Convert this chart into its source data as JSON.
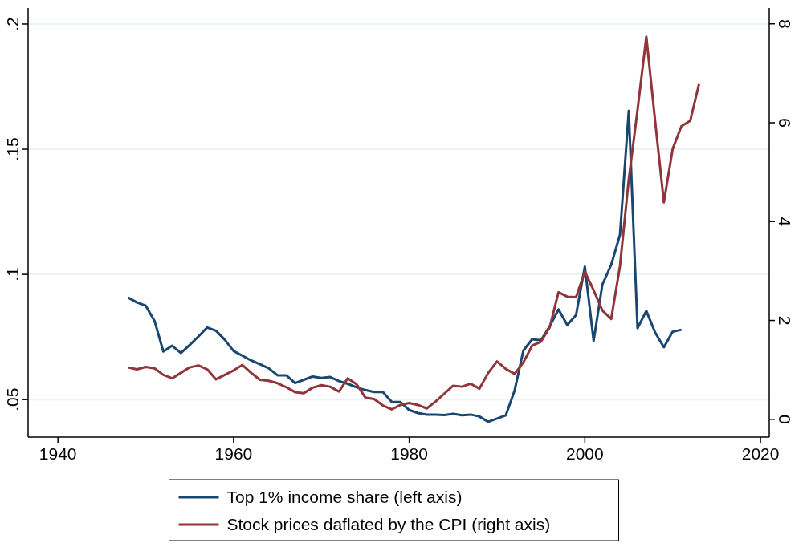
{
  "chart_data": {
    "type": "line",
    "xlim": [
      1936.6,
      2021
    ],
    "xticks": [
      1940,
      1960,
      1980,
      2000,
      2020
    ],
    "ylim": [
      0.035,
      0.2064
    ],
    "yticks": [
      {
        "value": 0.05,
        "label": ".05"
      },
      {
        "value": 0.1,
        "label": ".1"
      },
      {
        "value": 0.15,
        "label": ".15"
      },
      {
        "value": 0.2,
        "label": ".2"
      }
    ],
    "y2lim": [
      -0.36,
      8.32
    ],
    "y2ticks": [
      0,
      2,
      4,
      6,
      8
    ],
    "grid": "y",
    "legend": "bottom",
    "line_style": "solid",
    "marker": "none",
    "series": [
      {
        "name": "Top 1% income share (left axis)",
        "color": "#1a476f",
        "x": [
          1948,
          1949,
          1950,
          1951,
          1952,
          1953,
          1954,
          1955,
          1956,
          1957,
          1958,
          1959,
          1960,
          1961,
          1962,
          1963,
          1964,
          1965,
          1966,
          1967,
          1968,
          1969,
          1970,
          1971,
          1972,
          1973,
          1974,
          1975,
          1976,
          1977,
          1978,
          1979,
          1980,
          1981,
          1982,
          1983,
          1984,
          1985,
          1986,
          1987,
          1988,
          1989,
          1990,
          1991,
          1992,
          1993,
          1994,
          1995,
          1996,
          1997,
          1998,
          1999,
          2000,
          2001,
          2002,
          2003,
          2004,
          2005,
          2006,
          2007,
          2008,
          2009,
          2010,
          2011
        ],
        "values": [
          0.0907,
          0.0888,
          0.0875,
          0.0814,
          0.0692,
          0.0715,
          0.0686,
          0.0718,
          0.0752,
          0.0788,
          0.0775,
          0.0739,
          0.0694,
          0.0675,
          0.0656,
          0.0641,
          0.0625,
          0.0597,
          0.0597,
          0.0566,
          0.0579,
          0.0592,
          0.0586,
          0.059,
          0.0574,
          0.0563,
          0.0549,
          0.0538,
          0.053,
          0.053,
          0.0491,
          0.049,
          0.0458,
          0.0446,
          0.044,
          0.044,
          0.0438,
          0.0443,
          0.0437,
          0.044,
          0.0432,
          0.0411,
          0.0424,
          0.0437,
          0.0536,
          0.0696,
          0.0741,
          0.0737,
          0.0793,
          0.086,
          0.0798,
          0.0838,
          0.1031,
          0.0734,
          0.096,
          0.1038,
          0.1158,
          0.1653,
          0.0785,
          0.0854,
          0.0768,
          0.0709,
          0.0771,
          0.0779
        ]
      },
      {
        "name": "Stock prices daflated by the CPI (right axis)",
        "color": "#90353b",
        "axis": "y2",
        "x": [
          1948,
          1949,
          1950,
          1951,
          1952,
          1953,
          1954,
          1955,
          1956,
          1957,
          1958,
          1959,
          1960,
          1961,
          1962,
          1963,
          1964,
          1965,
          1966,
          1967,
          1968,
          1969,
          1970,
          1971,
          1972,
          1973,
          1974,
          1975,
          1976,
          1977,
          1978,
          1979,
          1980,
          1981,
          1982,
          1983,
          1984,
          1985,
          1986,
          1987,
          1988,
          1989,
          1990,
          1991,
          1992,
          1993,
          1994,
          1995,
          1996,
          1997,
          1998,
          1999,
          2000,
          2001,
          2002,
          2003,
          2004,
          2005,
          2006,
          2007,
          2008,
          2009,
          2010,
          2011,
          2012,
          2013
        ],
        "values": [
          1.05,
          1.01,
          1.06,
          1.03,
          0.9,
          0.83,
          0.94,
          1.05,
          1.09,
          1.01,
          0.81,
          0.9,
          0.99,
          1.1,
          0.94,
          0.8,
          0.78,
          0.73,
          0.65,
          0.55,
          0.53,
          0.64,
          0.69,
          0.66,
          0.56,
          0.83,
          0.71,
          0.44,
          0.41,
          0.28,
          0.2,
          0.29,
          0.33,
          0.29,
          0.22,
          0.36,
          0.52,
          0.68,
          0.66,
          0.72,
          0.62,
          0.94,
          1.17,
          1.02,
          0.92,
          1.15,
          1.49,
          1.57,
          1.86,
          2.57,
          2.48,
          2.47,
          2.99,
          2.61,
          2.2,
          2.03,
          3.1,
          4.85,
          6.26,
          7.74,
          6.04,
          4.39,
          5.47,
          5.93,
          6.04,
          6.78
        ]
      }
    ]
  }
}
